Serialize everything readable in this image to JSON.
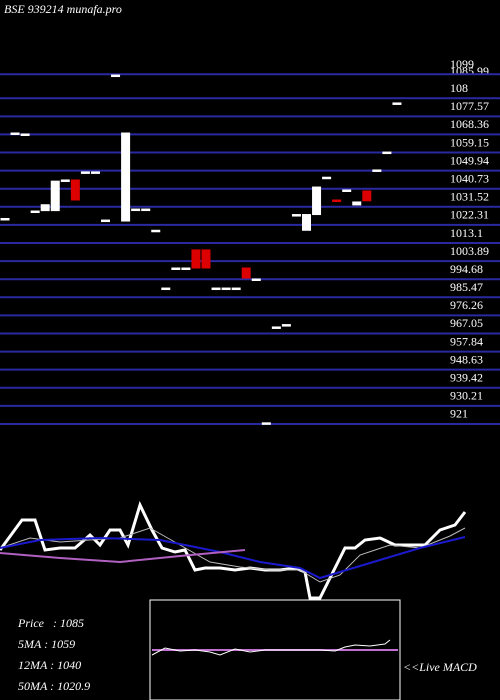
{
  "chart_data": [
    {
      "type": "candlestick",
      "title": "BSE 939214 munafa.pro",
      "price_label": "1085.99",
      "open": [
        1021,
        1064.5,
        1064,
        1024.8,
        1025,
        1025,
        1040.6,
        1040.6,
        1044.7,
        1044.7,
        1020.2,
        1094,
        1019.7,
        1025.8,
        1025.8,
        1015,
        985.6,
        995.8,
        995.8,
        1005,
        1005,
        985.6,
        985.6,
        985.6,
        995.8,
        990.2,
        917,
        965.8,
        967,
        1023,
        1015,
        1023,
        1042,
        1030.4,
        1035.5,
        1027.9,
        1035,
        1045.7,
        1054.8,
        1079.8
      ],
      "close": [
        1021,
        1064.5,
        1064,
        1024.8,
        1028,
        1040,
        1040.6,
        1030.4,
        1044.7,
        1044.7,
        1020.2,
        1094,
        1064.5,
        1025.8,
        1025.8,
        1015,
        985.6,
        995.8,
        995.8,
        995.8,
        995.8,
        985.6,
        985.6,
        985.6,
        990.7,
        990.2,
        917,
        965.8,
        967,
        1023,
        1023,
        1037,
        1042,
        1029.8,
        1035.5,
        1029.4,
        1030,
        1045.7,
        1054.8,
        1079.8
      ],
      "up_color": "#ffffff",
      "down_color": "#dd0000",
      "grid_color": "#2a2aa0",
      "ylim": [
        915.9,
        1127.1
      ],
      "yticks": [
        1099,
        {
          "value": 1086.78,
          "label": "108"
        },
        1077.57,
        1068.36,
        1059.15,
        1049.94,
        1040.73,
        1031.52,
        1022.31,
        1013.1,
        1003.89,
        994.68,
        985.47,
        976.26,
        967.05,
        957.84,
        948.63,
        939.42,
        930.21,
        921
      ],
      "grid": true
    },
    {
      "type": "line",
      "ylim": [
        0,
        100
      ],
      "xlim": [
        0,
        500
      ],
      "stats": [
        "Price   : 1085",
        "5MA : 1059",
        "12MA : 1040",
        "50MA : 1020.9"
      ],
      "series": [
        {
          "name": "Price",
          "color": "#ffffff",
          "width": 3,
          "x": [
            0,
            22,
            35,
            45,
            60,
            75,
            90,
            100,
            110,
            120,
            128,
            140,
            152,
            162,
            175,
            185,
            195,
            205,
            220,
            235,
            250,
            265,
            280,
            295,
            305,
            310,
            320,
            330,
            345,
            355,
            365,
            380,
            395,
            410,
            425,
            440,
            455,
            465
          ],
          "values": [
            50,
            80,
            80,
            50,
            52,
            52,
            65,
            55,
            70,
            70,
            55,
            95,
            70,
            52,
            48,
            50,
            30,
            32,
            32,
            30,
            32,
            30,
            30,
            32,
            28,
            2,
            2,
            22,
            52,
            52,
            60,
            62,
            55,
            55,
            55,
            70,
            75,
            88
          ]
        },
        {
          "name": "5MA",
          "color": "#bbbbbb",
          "width": 1,
          "x": [
            0,
            30,
            60,
            90,
            120,
            150,
            180,
            210,
            240,
            270,
            300,
            320,
            340,
            360,
            390,
            420,
            450,
            465
          ],
          "values": [
            52,
            62,
            58,
            60,
            62,
            72,
            55,
            38,
            33,
            30,
            30,
            18,
            25,
            45,
            55,
            52,
            64,
            72
          ]
        },
        {
          "name": "12MA",
          "color": "#1a1acc",
          "width": 2,
          "x": [
            0,
            40,
            100,
            160,
            220,
            260,
            300,
            320,
            340,
            380,
            420,
            465
          ],
          "values": [
            52,
            60,
            62,
            60,
            48,
            38,
            32,
            22,
            28,
            40,
            52,
            63
          ]
        },
        {
          "name": "50MA",
          "color": "#b060c0",
          "width": 2,
          "x": [
            0,
            60,
            120,
            180,
            245
          ],
          "values": [
            47,
            42,
            38,
            44,
            50
          ]
        }
      ]
    },
    {
      "type": "line",
      "ylim": [
        0,
        100
      ],
      "xlim": [
        150,
        400
      ],
      "title": "<<Live MACD",
      "series": [
        {
          "name": "Signal",
          "color": "#c070d0",
          "width": 2,
          "x": [
            152,
            398
          ],
          "values": [
            50,
            50
          ]
        },
        {
          "name": "MACD",
          "color": "#ffffff",
          "width": 1,
          "x": [
            152,
            165,
            180,
            195,
            210,
            220,
            235,
            250,
            265,
            280,
            300,
            320,
            335,
            345,
            355,
            370,
            385,
            390
          ],
          "values": [
            45,
            52,
            49,
            50,
            48,
            45,
            51,
            48,
            50,
            50,
            50,
            50,
            49,
            53,
            55,
            54,
            56,
            60
          ]
        }
      ]
    }
  ]
}
